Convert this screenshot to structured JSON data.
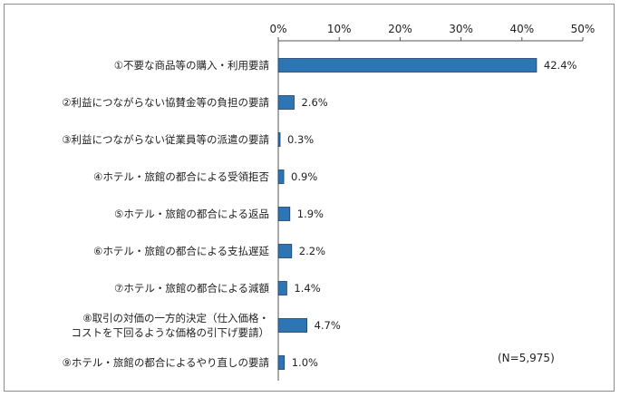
{
  "chart_data": {
    "type": "bar",
    "orientation": "horizontal",
    "categories": [
      [
        "①不要な商品等の購入・利用要請"
      ],
      [
        "②利益につながらない協賛金等の負担の要請"
      ],
      [
        "③利益につながらない従業員等の派遣の要請"
      ],
      [
        "④ホテル・旅館の都合による受領拒否"
      ],
      [
        "⑤ホテル・旅館の都合による返品"
      ],
      [
        "⑥ホテル・旅館の都合による支払遅延"
      ],
      [
        "⑦ホテル・旅館の都合による減額"
      ],
      [
        "⑧取引の対価の一方的決定（仕入価格・",
        "コストを下回るような価格の引下げ要請）"
      ],
      [
        "⑨ホテル・旅館の都合によるやり直しの要請"
      ]
    ],
    "values": [
      42.4,
      2.6,
      0.3,
      0.9,
      1.9,
      2.2,
      1.4,
      4.7,
      1.0
    ],
    "value_labels": [
      "42.4%",
      "2.6%",
      "0.3%",
      "0.9%",
      "1.9%",
      "2.2%",
      "1.4%",
      "4.7%",
      "1.0%"
    ],
    "xlim": [
      0,
      50
    ],
    "x_ticks": [
      0,
      10,
      20,
      30,
      40,
      50
    ],
    "x_tick_labels": [
      "0%",
      "10%",
      "20%",
      "30%",
      "40%",
      "50%"
    ],
    "axis_position": "top",
    "grid": false,
    "bar_color": "#2e75b6",
    "bar_edge_color": "#1f3f66",
    "note": "(N=5,975)"
  }
}
